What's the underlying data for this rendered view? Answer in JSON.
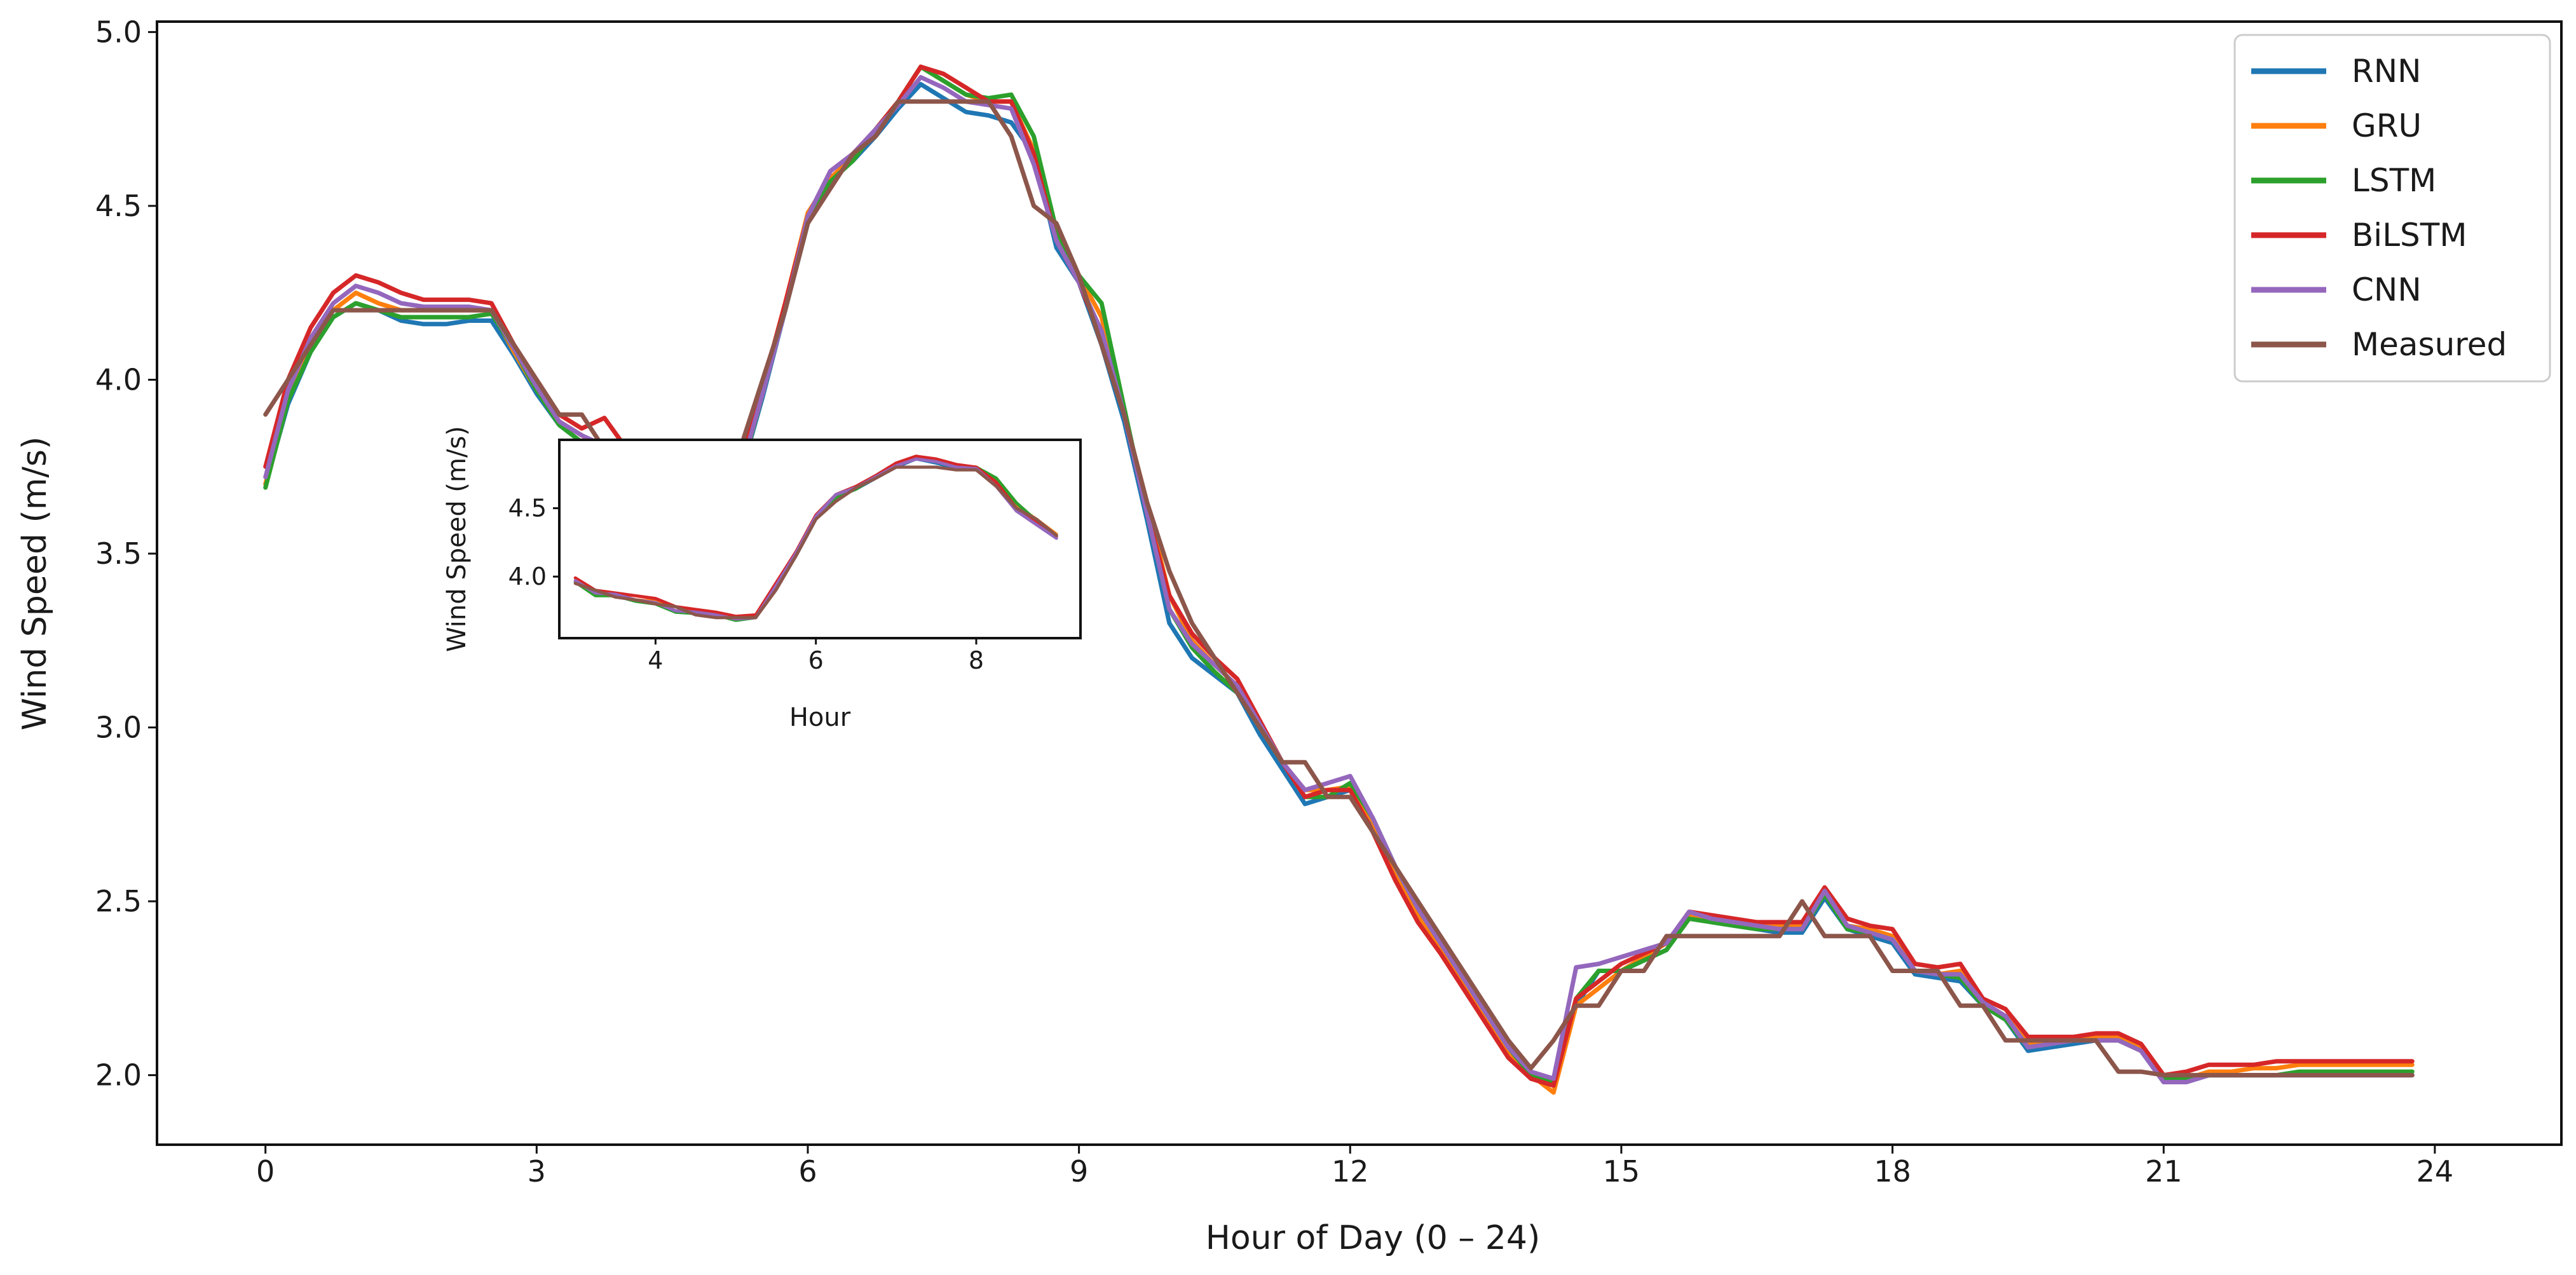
{
  "chart_data": [
    {
      "type": "line",
      "xlabel": "Hour of Day (0 – 24)",
      "ylabel": "Wind Speed (m/s)",
      "xlim": [
        -1.2,
        25.4
      ],
      "ylim": [
        1.8,
        5.03
      ],
      "xticks": [
        0,
        3,
        6,
        9,
        12,
        15,
        18,
        21,
        24
      ],
      "xtick_labels": [
        "0",
        "3",
        "6",
        "9",
        "12",
        "15",
        "18",
        "21",
        "24"
      ],
      "yticks": [
        2.0,
        2.5,
        3.0,
        3.5,
        4.0,
        4.5,
        5.0
      ],
      "ytick_labels": [
        "2.0",
        "2.5",
        "3.0",
        "3.5",
        "4.0",
        "4.5",
        "5.0"
      ],
      "grid": false,
      "legend_position": "top-right",
      "x": [
        0,
        0.25,
        0.5,
        0.75,
        1,
        1.25,
        1.5,
        1.75,
        2,
        2.25,
        2.5,
        2.75,
        3,
        3.25,
        3.5,
        3.75,
        4,
        4.25,
        4.5,
        4.75,
        5,
        5.25,
        5.5,
        5.75,
        6,
        6.25,
        6.5,
        6.75,
        7,
        7.25,
        7.5,
        7.75,
        8,
        8.25,
        8.5,
        8.75,
        9,
        9.25,
        9.5,
        9.75,
        10,
        10.25,
        10.5,
        10.75,
        11,
        11.25,
        11.5,
        11.75,
        12,
        12.25,
        12.5,
        12.75,
        13,
        13.25,
        13.5,
        13.75,
        14,
        14.25,
        14.5,
        14.75,
        15,
        15.25,
        15.5,
        15.75,
        16,
        16.25,
        16.5,
        16.75,
        17,
        17.25,
        17.5,
        17.75,
        18,
        18.25,
        18.5,
        18.75,
        19,
        19.25,
        19.5,
        19.75,
        20,
        20.25,
        20.5,
        20.75,
        21,
        21.25,
        21.5,
        21.75,
        22,
        22.25,
        22.5,
        22.75,
        23,
        23.25,
        23.5,
        23.75
      ],
      "series": [
        {
          "name": "RNN",
          "color": "#1f77b4",
          "values": [
            3.7,
            3.93,
            4.08,
            4.18,
            4.22,
            4.2,
            4.17,
            4.16,
            4.16,
            4.17,
            4.17,
            4.07,
            3.96,
            3.87,
            3.82,
            3.8,
            3.75,
            3.74,
            3.7,
            3.7,
            3.68,
            3.72,
            3.95,
            4.2,
            4.45,
            4.58,
            4.63,
            4.7,
            4.78,
            4.85,
            4.81,
            4.77,
            4.76,
            4.74,
            4.65,
            4.38,
            4.28,
            4.1,
            3.88,
            3.6,
            3.3,
            3.2,
            3.15,
            3.1,
            2.98,
            2.88,
            2.78,
            2.8,
            2.82,
            2.72,
            2.58,
            2.48,
            2.38,
            2.28,
            2.18,
            2.08,
            2.0,
            1.98,
            2.2,
            2.3,
            2.3,
            2.33,
            2.36,
            2.46,
            2.44,
            2.43,
            2.42,
            2.41,
            2.41,
            2.51,
            2.42,
            2.4,
            2.38,
            2.29,
            2.28,
            2.27,
            2.2,
            2.16,
            2.07,
            2.08,
            2.09,
            2.1,
            2.11,
            2.07,
            1.98,
            1.98,
            2.0,
            2.0,
            2.0,
            2.0,
            2.0,
            2.0,
            2.0,
            2.0,
            2.0,
            2.0
          ]
        },
        {
          "name": "GRU",
          "color": "#ff7f0e",
          "values": [
            3.7,
            3.96,
            4.1,
            4.2,
            4.25,
            4.22,
            4.2,
            4.2,
            4.2,
            4.2,
            4.2,
            4.08,
            3.97,
            3.88,
            3.84,
            3.8,
            3.76,
            3.74,
            3.71,
            3.7,
            3.69,
            3.75,
            3.98,
            4.22,
            4.48,
            4.58,
            4.64,
            4.72,
            4.8,
            4.9,
            4.86,
            4.82,
            4.8,
            4.8,
            4.66,
            4.4,
            4.3,
            4.18,
            3.9,
            3.65,
            3.38,
            3.25,
            3.18,
            3.12,
            3.0,
            2.9,
            2.82,
            2.82,
            2.83,
            2.73,
            2.58,
            2.46,
            2.36,
            2.26,
            2.16,
            2.06,
            2.0,
            1.95,
            2.2,
            2.25,
            2.3,
            2.34,
            2.38,
            2.46,
            2.45,
            2.44,
            2.43,
            2.43,
            2.43,
            2.52,
            2.43,
            2.42,
            2.4,
            2.3,
            2.29,
            2.3,
            2.2,
            2.17,
            2.09,
            2.1,
            2.11,
            2.11,
            2.11,
            2.08,
            1.99,
            1.99,
            2.01,
            2.01,
            2.02,
            2.02,
            2.03,
            2.03,
            2.03,
            2.03,
            2.03,
            2.03
          ]
        },
        {
          "name": "LSTM",
          "color": "#2ca02c",
          "values": [
            3.69,
            3.94,
            4.08,
            4.18,
            4.22,
            4.2,
            4.18,
            4.18,
            4.18,
            4.18,
            4.19,
            4.09,
            3.97,
            3.87,
            3.82,
            3.79,
            3.75,
            3.74,
            3.7,
            3.7,
            3.68,
            3.72,
            3.96,
            4.2,
            4.46,
            4.57,
            4.63,
            4.72,
            4.8,
            4.9,
            4.86,
            4.82,
            4.81,
            4.82,
            4.7,
            4.43,
            4.3,
            4.22,
            3.92,
            3.62,
            3.34,
            3.23,
            3.16,
            3.1,
            3.0,
            2.9,
            2.8,
            2.8,
            2.84,
            2.74,
            2.6,
            2.48,
            2.38,
            2.28,
            2.18,
            2.08,
            2.0,
            1.98,
            2.22,
            2.3,
            2.3,
            2.33,
            2.36,
            2.45,
            2.44,
            2.43,
            2.42,
            2.42,
            2.42,
            2.52,
            2.42,
            2.41,
            2.39,
            2.3,
            2.29,
            2.28,
            2.2,
            2.16,
            2.08,
            2.09,
            2.1,
            2.1,
            2.1,
            2.07,
            1.99,
            1.99,
            2.0,
            2.0,
            2.0,
            2.0,
            2.01,
            2.01,
            2.01,
            2.01,
            2.01,
            2.01
          ]
        },
        {
          "name": "BiLSTM",
          "color": "#d62728",
          "values": [
            3.75,
            4.0,
            4.15,
            4.25,
            4.3,
            4.28,
            4.25,
            4.23,
            4.23,
            4.23,
            4.22,
            4.1,
            4.0,
            3.9,
            3.86,
            3.89,
            3.8,
            3.78,
            3.74,
            3.72,
            3.7,
            3.75,
            3.98,
            4.22,
            4.47,
            4.6,
            4.65,
            4.72,
            4.8,
            4.9,
            4.88,
            4.84,
            4.8,
            4.8,
            4.65,
            4.4,
            4.28,
            4.12,
            3.9,
            3.62,
            3.38,
            3.27,
            3.2,
            3.14,
            3.02,
            2.9,
            2.8,
            2.82,
            2.82,
            2.7,
            2.56,
            2.44,
            2.35,
            2.25,
            2.15,
            2.05,
            1.99,
            1.97,
            2.22,
            2.27,
            2.32,
            2.35,
            2.38,
            2.47,
            2.46,
            2.45,
            2.44,
            2.44,
            2.44,
            2.54,
            2.45,
            2.43,
            2.42,
            2.32,
            2.31,
            2.32,
            2.22,
            2.19,
            2.11,
            2.11,
            2.11,
            2.12,
            2.12,
            2.09,
            2.0,
            2.01,
            2.03,
            2.03,
            2.03,
            2.04,
            2.04,
            2.04,
            2.04,
            2.04,
            2.04,
            2.04
          ]
        },
        {
          "name": "CNN",
          "color": "#9467bd",
          "values": [
            3.72,
            3.97,
            4.12,
            4.22,
            4.27,
            4.25,
            4.22,
            4.21,
            4.21,
            4.21,
            4.2,
            4.09,
            3.98,
            3.88,
            3.84,
            3.81,
            3.77,
            3.75,
            3.71,
            3.7,
            3.69,
            3.73,
            3.96,
            4.2,
            4.47,
            4.6,
            4.65,
            4.72,
            4.79,
            4.87,
            4.84,
            4.8,
            4.79,
            4.78,
            4.62,
            4.4,
            4.28,
            4.14,
            3.9,
            3.62,
            3.34,
            3.24,
            3.18,
            3.12,
            3.01,
            2.9,
            2.82,
            2.84,
            2.86,
            2.74,
            2.6,
            2.48,
            2.38,
            2.28,
            2.18,
            2.08,
            2.01,
            1.99,
            2.31,
            2.32,
            2.34,
            2.36,
            2.38,
            2.47,
            2.45,
            2.44,
            2.43,
            2.42,
            2.42,
            2.53,
            2.43,
            2.41,
            2.39,
            2.3,
            2.29,
            2.29,
            2.21,
            2.17,
            2.08,
            2.09,
            2.1,
            2.1,
            2.1,
            2.07,
            1.98,
            1.98,
            2.0,
            2.0,
            2.0,
            2.0,
            2.0,
            2.0,
            2.0,
            2.0,
            2.0,
            2.0
          ]
        },
        {
          "name": "Measured",
          "color": "#8c564b",
          "values": [
            3.9,
            4.0,
            4.1,
            4.2,
            4.2,
            4.2,
            4.2,
            4.2,
            4.2,
            4.2,
            4.2,
            4.1,
            4.0,
            3.9,
            3.9,
            3.8,
            3.8,
            3.8,
            3.7,
            3.7,
            3.7,
            3.8,
            4.0,
            4.2,
            4.45,
            4.55,
            4.65,
            4.7,
            4.8,
            4.8,
            4.8,
            4.8,
            4.8,
            4.7,
            4.5,
            4.45,
            4.3,
            4.1,
            3.9,
            3.65,
            3.45,
            3.3,
            3.2,
            3.1,
            3.0,
            2.9,
            2.9,
            2.8,
            2.8,
            2.7,
            2.6,
            2.5,
            2.4,
            2.3,
            2.2,
            2.1,
            2.02,
            2.1,
            2.2,
            2.2,
            2.3,
            2.3,
            2.4,
            2.4,
            2.4,
            2.4,
            2.4,
            2.4,
            2.5,
            2.4,
            2.4,
            2.4,
            2.3,
            2.3,
            2.3,
            2.2,
            2.2,
            2.1,
            2.1,
            2.1,
            2.1,
            2.1,
            2.01,
            2.01,
            2.0,
            2.0,
            2.0,
            2.0,
            2.0,
            2.0,
            2.0,
            2.0,
            2.0,
            2.0,
            2.0,
            2.0
          ]
        }
      ]
    },
    {
      "type": "line",
      "xlabel": "Hour",
      "ylabel": "Wind Speed (m/s)",
      "xlim": [
        2.8,
        9.3
      ],
      "ylim": [
        3.55,
        5.0
      ],
      "xticks": [
        4,
        6,
        8
      ],
      "xtick_labels": [
        "4",
        "6",
        "8"
      ],
      "yticks": [
        4.0,
        4.5
      ],
      "ytick_labels": [
        "4.0",
        "4.5"
      ],
      "grid": false,
      "x": [
        3,
        3.25,
        3.5,
        3.75,
        4,
        4.25,
        4.5,
        4.75,
        5,
        5.25,
        5.5,
        5.75,
        6,
        6.25,
        6.5,
        6.75,
        7,
        7.25,
        7.5,
        7.75,
        8,
        8.25,
        8.5,
        8.75,
        9
      ],
      "series": [
        {
          "name": "RNN",
          "color": "#1f77b4",
          "values": [
            3.96,
            3.87,
            3.86,
            3.82,
            3.8,
            3.74,
            3.73,
            3.72,
            3.68,
            3.7,
            3.92,
            4.15,
            4.42,
            4.58,
            4.64,
            4.72,
            4.8,
            4.86,
            4.83,
            4.79,
            4.78,
            4.68,
            4.5,
            4.4,
            4.3
          ]
        },
        {
          "name": "GRU",
          "color": "#ff7f0e",
          "values": [
            3.97,
            3.88,
            3.87,
            3.83,
            3.82,
            3.75,
            3.74,
            3.73,
            3.69,
            3.71,
            3.94,
            4.17,
            4.44,
            4.59,
            4.65,
            4.73,
            4.82,
            4.88,
            4.85,
            4.81,
            4.8,
            4.7,
            4.52,
            4.42,
            4.31
          ]
        },
        {
          "name": "LSTM",
          "color": "#2ca02c",
          "values": [
            3.96,
            3.86,
            3.86,
            3.82,
            3.8,
            3.74,
            3.73,
            3.72,
            3.68,
            3.7,
            3.93,
            4.16,
            4.43,
            4.58,
            4.64,
            4.73,
            4.81,
            4.87,
            4.84,
            4.8,
            4.8,
            4.72,
            4.54,
            4.41,
            4.3
          ]
        },
        {
          "name": "BiLSTM",
          "color": "#d62728",
          "values": [
            3.99,
            3.9,
            3.88,
            3.86,
            3.84,
            3.78,
            3.76,
            3.74,
            3.71,
            3.72,
            3.95,
            4.18,
            4.45,
            4.6,
            4.66,
            4.74,
            4.83,
            4.88,
            4.86,
            4.82,
            4.8,
            4.69,
            4.5,
            4.4,
            4.29
          ]
        },
        {
          "name": "CNN",
          "color": "#9467bd",
          "values": [
            3.97,
            3.88,
            3.87,
            3.83,
            3.81,
            3.75,
            3.74,
            3.72,
            3.69,
            3.7,
            3.93,
            4.17,
            4.44,
            4.6,
            4.65,
            4.73,
            4.81,
            4.86,
            4.84,
            4.8,
            4.79,
            4.66,
            4.48,
            4.38,
            4.28
          ]
        },
        {
          "name": "Measured",
          "color": "#8c564b",
          "values": [
            3.95,
            3.9,
            3.85,
            3.83,
            3.8,
            3.78,
            3.72,
            3.7,
            3.7,
            3.7,
            3.9,
            4.15,
            4.42,
            4.55,
            4.65,
            4.72,
            4.8,
            4.8,
            4.8,
            4.78,
            4.78,
            4.66,
            4.5,
            4.42,
            4.3
          ]
        }
      ]
    }
  ]
}
